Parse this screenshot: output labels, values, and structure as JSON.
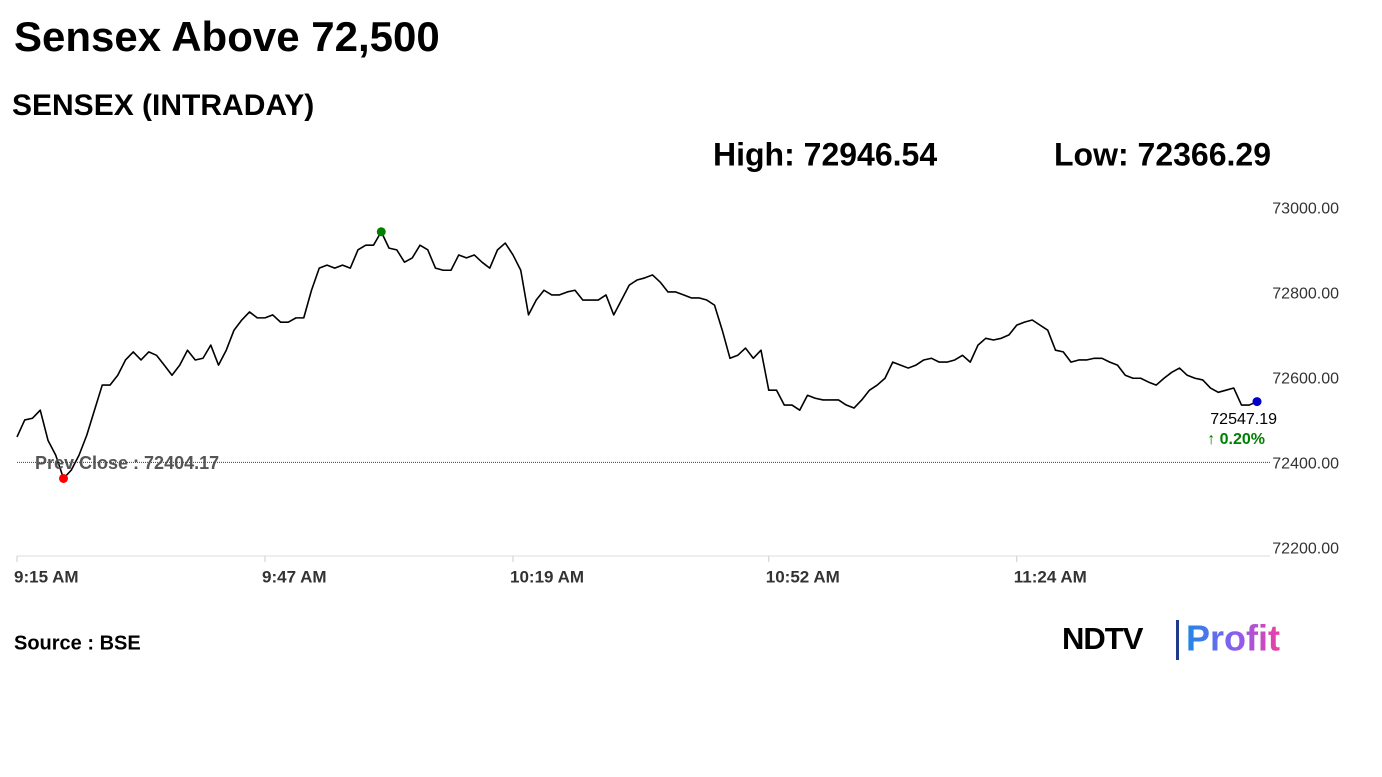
{
  "chart_data": {
    "type": "line",
    "title": "Sensex Above 72,500",
    "subtitle": "SENSEX (INTRADAY)",
    "high": {
      "label": "High: 72946.54",
      "value": 72946.54
    },
    "low": {
      "label": "Low: 72366.29",
      "value": 72366.29
    },
    "prev_close": {
      "label": "Prev Close : 72404.17",
      "value": 72404.17,
      "color": "#cc0000"
    },
    "change_label": "↑ 0.20%",
    "color": "#000000",
    "high_color": "#008000",
    "low_color": "#ff0000",
    "last_color": "#0000cc",
    "x": [
      "9:15 AM",
      "9:16 AM",
      "9:17 AM",
      "9:18 AM",
      "9:19 AM",
      "9:20 AM",
      "9:21 AM",
      "9:22 AM",
      "9:23 AM",
      "9:24 AM",
      "9:25 AM",
      "9:26 AM",
      "9:27 AM",
      "9:28 AM",
      "9:29 AM",
      "9:30 AM",
      "9:31 AM",
      "9:32 AM",
      "9:33 AM",
      "9:34 AM",
      "9:35 AM",
      "9:36 AM",
      "9:37 AM",
      "9:38 AM",
      "9:39 AM",
      "9:40 AM",
      "9:41 AM",
      "9:42 AM",
      "9:43 AM",
      "9:44 AM",
      "9:45 AM",
      "9:46 AM",
      "9:47 AM",
      "9:48 AM",
      "9:49 AM",
      "9:50 AM",
      "9:51 AM",
      "9:52 AM",
      "9:53 AM",
      "9:54 AM",
      "9:55 AM",
      "9:56 AM",
      "9:57 AM",
      "9:58 AM",
      "9:59 AM",
      "10:00 AM",
      "10:01 AM",
      "10:02 AM",
      "10:03 AM",
      "10:04 AM",
      "10:05 AM",
      "10:06 AM",
      "10:07 AM",
      "10:08 AM",
      "10:09 AM",
      "10:10 AM",
      "10:11 AM",
      "10:12 AM",
      "10:13 AM",
      "10:14 AM",
      "10:15 AM",
      "10:16 AM",
      "10:17 AM",
      "10:18 AM",
      "10:19 AM",
      "10:20 AM",
      "10:21 AM",
      "10:22 AM",
      "10:23 AM",
      "10:24 AM",
      "10:25 AM",
      "10:26 AM",
      "10:27 AM",
      "10:28 AM",
      "10:29 AM",
      "10:30 AM",
      "10:31 AM",
      "10:32 AM",
      "10:33 AM",
      "10:34 AM",
      "10:35 AM",
      "10:36 AM",
      "10:37 AM",
      "10:38 AM",
      "10:39 AM",
      "10:40 AM",
      "10:41 AM",
      "10:42 AM",
      "10:43 AM",
      "10:44 AM",
      "10:45 AM",
      "10:46 AM",
      "10:47 AM",
      "10:48 AM",
      "10:49 AM",
      "10:50 AM",
      "10:51 AM",
      "10:52 AM",
      "10:53 AM",
      "10:54 AM",
      "10:55 AM",
      "10:56 AM",
      "10:57 AM",
      "10:58 AM",
      "10:59 AM",
      "11:00 AM",
      "11:01 AM",
      "11:02 AM",
      "11:03 AM",
      "11:04 AM",
      "11:05 AM",
      "11:06 AM",
      "11:07 AM",
      "11:08 AM",
      "11:09 AM",
      "11:10 AM",
      "11:11 AM",
      "11:12 AM",
      "11:13 AM",
      "11:14 AM",
      "11:15 AM",
      "11:16 AM",
      "11:17 AM",
      "11:18 AM",
      "11:19 AM",
      "11:20 AM",
      "11:21 AM",
      "11:22 AM",
      "11:23 AM",
      "11:24 AM",
      "11:25 AM",
      "11:26 AM",
      "11:27 AM",
      "11:28 AM",
      "11:29 AM",
      "11:30 AM",
      "11:31 AM",
      "11:32 AM",
      "11:33 AM",
      "11:34 AM",
      "11:35 AM",
      "11:36 AM",
      "11:37 AM",
      "11:38 AM",
      "11:39 AM",
      "11:40 AM",
      "11:41 AM",
      "11:42 AM",
      "11:43 AM",
      "11:44 AM",
      "11:45 AM",
      "11:46 AM",
      "11:47 AM",
      "11:48 AM",
      "11:49 AM",
      "11:50 AM",
      "11:51 AM",
      "11:52 AM",
      "11:53 AM",
      "11:54 AM",
      "11:55 AM"
    ],
    "values": [
      72464,
      72504,
      72508,
      72527,
      72456,
      72421,
      72366.29,
      72386,
      72421,
      72468,
      72527,
      72586,
      72586,
      72609,
      72645,
      72664,
      72645,
      72664,
      72656,
      72633,
      72609,
      72633,
      72668,
      72645,
      72649,
      72680,
      72633,
      72668,
      72715,
      72739,
      72758,
      72744,
      72744,
      72751,
      72734,
      72734,
      72744,
      72744,
      72809,
      72861,
      72868,
      72861,
      72868,
      72861,
      72904,
      72915,
      72915,
      72946.54,
      72908,
      72904,
      72875,
      72885,
      72915,
      72904,
      72861,
      72856,
      72856,
      72892,
      72885,
      72892,
      72875,
      72861,
      72904,
      72920,
      72892,
      72856,
      72751,
      72786,
      72809,
      72798,
      72798,
      72805,
      72809,
      72786,
      72786,
      72786,
      72798,
      72751,
      72786,
      72821,
      72833,
      72838,
      72845,
      72828,
      72805,
      72805,
      72798,
      72791,
      72791,
      72786,
      72774,
      72715,
      72649,
      72656,
      72673,
      72649,
      72668,
      72574,
      72574,
      72539,
      72539,
      72527,
      72562,
      72555,
      72551,
      72551,
      72551,
      72539,
      72532,
      72551,
      72574,
      72586,
      72602,
      72640,
      72633,
      72626,
      72633,
      72645,
      72649,
      72640,
      72640,
      72645,
      72656,
      72640,
      72680,
      72696,
      72692,
      72696,
      72704,
      72727,
      72734,
      72739,
      72727,
      72715,
      72668,
      72664,
      72640,
      72645,
      72645,
      72649,
      72649,
      72640,
      72633,
      72609,
      72602,
      72602,
      72593,
      72586,
      72602,
      72616,
      72626,
      72609,
      72602,
      72598,
      72579,
      72569,
      72574,
      72579,
      72539,
      72539,
      72547.19
    ],
    "xticks": [
      "9:15 AM",
      "9:47 AM",
      "10:19 AM",
      "10:52 AM",
      "11:24 AM"
    ],
    "ylim": [
      72184,
      73033
    ],
    "yticks": [
      {
        "value": 72200,
        "label": "72200.00"
      },
      {
        "value": 72400,
        "label": "72400.00"
      },
      {
        "value": 72600,
        "label": "72600.00"
      },
      {
        "value": 72800,
        "label": "72800.00"
      },
      {
        "value": 73000,
        "label": "73000.00"
      }
    ],
    "grid": false,
    "source": "Source : BSE",
    "logo": {
      "left": "NDTV",
      "right": "Profit"
    }
  }
}
